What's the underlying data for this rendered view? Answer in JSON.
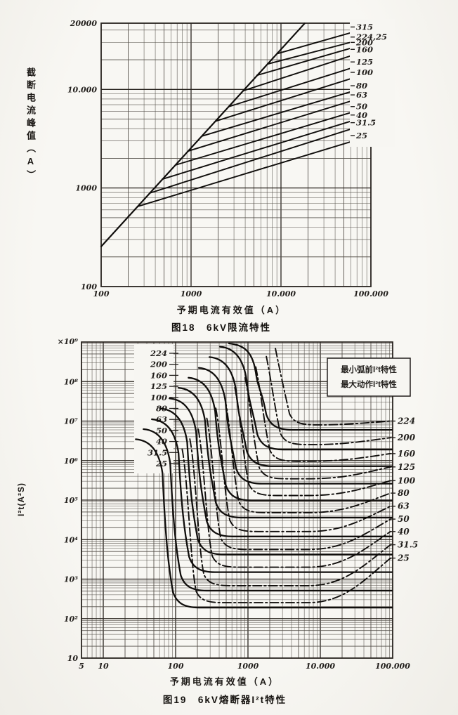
{
  "page": {
    "paper": "#f7f6f2",
    "ink": "#221f1c",
    "grid_minor": "#55504a",
    "grid_major": "#28231e",
    "curve_color": "#100e0c"
  },
  "chart_data": [
    {
      "id": "fig18",
      "type": "line",
      "log_x": true,
      "log_y": true,
      "caption": "图18　6kV限流特性",
      "xlabel": "予期电流有效值（A）",
      "ylabel": "截断电流峰值（A）",
      "xlim": [
        100,
        100000
      ],
      "ylim": [
        100,
        47000
      ],
      "x_ticks": [
        {
          "v": 100,
          "label": "100"
        },
        {
          "v": 1000,
          "label": "1000"
        },
        {
          "v": 10000,
          "label": "10.000"
        },
        {
          "v": 100000,
          "label": "100.000"
        }
      ],
      "y_ticks": [
        {
          "v": 100,
          "label": "100"
        },
        {
          "v": 1000,
          "label": "1000"
        },
        {
          "v": 10000,
          "label": "10.000"
        },
        {
          "v": 20000,
          "label": "20000",
          "at_top": true
        }
      ],
      "prospective_peak_line": {
        "factor": 2.55,
        "from_I": 100,
        "to_I": 18300
      },
      "series": [
        {
          "label": "315",
          "branch_I": 9000,
          "branch_peak": 23000,
          "end_peak_at_100kA": 43000
        },
        {
          "label": "224,25",
          "branch_I": 7100,
          "branch_peak": 18100,
          "end_peak_at_100kA": 34000
        },
        {
          "label": "200",
          "branch_I": 5400,
          "branch_peak": 13900,
          "end_peak_at_100kA": 30000
        },
        {
          "label": "160",
          "branch_I": 3800,
          "branch_peak": 9700,
          "end_peak_at_100kA": 25500
        },
        {
          "label": "125",
          "branch_I": 2640,
          "branch_peak": 6700,
          "end_peak_at_100kA": 19000
        },
        {
          "label": "100",
          "branch_I": 1870,
          "branch_peak": 4760,
          "end_peak_at_100kA": 14900
        },
        {
          "label": "80",
          "branch_I": 1320,
          "branch_peak": 3360,
          "end_peak_at_100kA": 10900
        },
        {
          "label": "63",
          "branch_I": 930,
          "branch_peak": 2370,
          "end_peak_at_100kA": 8800
        },
        {
          "label": "50",
          "branch_I": 670,
          "branch_peak": 1710,
          "end_peak_at_100kA": 6700
        },
        {
          "label": "40",
          "branch_I": 480,
          "branch_peak": 1230,
          "end_peak_at_100kA": 5500
        },
        {
          "label": "31.5",
          "branch_I": 350,
          "branch_peak": 890,
          "end_peak_at_100kA": 4600
        },
        {
          "label": "25",
          "branch_I": 255,
          "branch_peak": 650,
          "end_peak_at_100kA": 3400
        }
      ]
    },
    {
      "id": "fig19",
      "type": "line",
      "log_x": true,
      "log_y": true,
      "caption": "图19　6kV熔断器I²t特性",
      "xlabel": "予期电流有效值（A）",
      "ylabel": "I²t(A²S)",
      "xlim": [
        5,
        100000
      ],
      "ylim": [
        10,
        1000000000
      ],
      "x_ticks": [
        {
          "v": 5,
          "label": "5"
        },
        {
          "v": 10,
          "label": "10"
        },
        {
          "v": 100,
          "label": "100"
        },
        {
          "v": 1000,
          "label": "1000"
        },
        {
          "v": 10000,
          "label": "10.000"
        },
        {
          "v": 100000,
          "label": "100.000"
        }
      ],
      "y_ticks": [
        {
          "v": 10,
          "label": "10"
        },
        {
          "v": 100,
          "label": "10²"
        },
        {
          "v": 1000,
          "label": "10³"
        },
        {
          "v": 10000,
          "label": "10⁴"
        },
        {
          "v": 100000,
          "label": "10⁵"
        },
        {
          "v": 1000000,
          "label": "10⁶"
        },
        {
          "v": 10000000,
          "label": "10⁷"
        },
        {
          "v": 100000000,
          "label": "10⁸"
        },
        {
          "v": 1000000000,
          "label": "×10⁹",
          "at_top": true
        }
      ],
      "legend": {
        "items": [
          {
            "label": "最小弧前I²t特性",
            "style": "solid"
          },
          {
            "label": "最大动作I²t特性",
            "style": "dash-dot"
          }
        ]
      },
      "series": [
        {
          "label": "224",
          "steep_I": 1400,
          "start_I2t": 1000000000.0,
          "min_prearc_I2t": 6000000.0,
          "max_operate_I2t_100kA": 10000000.0
        },
        {
          "label": "200",
          "steep_I": 1050,
          "start_I2t": 550000000.0,
          "min_prearc_I2t": 1900000.0,
          "max_operate_I2t_100kA": 3800000.0
        },
        {
          "label": "160",
          "steep_I": 750,
          "start_I2t": 300000000.0,
          "min_prearc_I2t": 720000.0,
          "max_operate_I2t_100kA": 1500000.0
        },
        {
          "label": "125",
          "steep_I": 535,
          "start_I2t": 160000000.0,
          "min_prearc_I2t": 260000.0,
          "max_operate_I2t_100kA": 690000.0
        },
        {
          "label": "100",
          "steep_I": 385,
          "start_I2t": 90000000.0,
          "min_prearc_I2t": 98000.0,
          "max_operate_I2t_100kA": 310000.0
        },
        {
          "label": "80",
          "steep_I": 280,
          "start_I2t": 50000000.0,
          "min_prearc_I2t": 36000.0,
          "max_operate_I2t_100kA": 150000.0
        },
        {
          "label": "63",
          "steep_I": 210,
          "start_I2t": 27000000.0,
          "min_prearc_I2t": 12000.0,
          "max_operate_I2t_100kA": 70000.0
        },
        {
          "label": "50",
          "steep_I": 158,
          "start_I2t": 15000000.0,
          "min_prearc_I2t": 4200.0,
          "max_operate_I2t_100kA": 33000.0
        },
        {
          "label": "40",
          "steep_I": 120,
          "start_I2t": 8000000.0,
          "min_prearc_I2t": 1500.0,
          "max_operate_I2t_100kA": 16000.0
        },
        {
          "label": "31.5",
          "steep_I": 92,
          "start_I2t": 4500000.0,
          "min_prearc_I2t": 510.0,
          "max_operate_I2t_100kA": 7400.0
        },
        {
          "label": "25",
          "steep_I": 72,
          "start_I2t": 2500000.0,
          "min_prearc_I2t": 190.0,
          "max_operate_I2t_100kA": 3400.0
        }
      ]
    }
  ]
}
